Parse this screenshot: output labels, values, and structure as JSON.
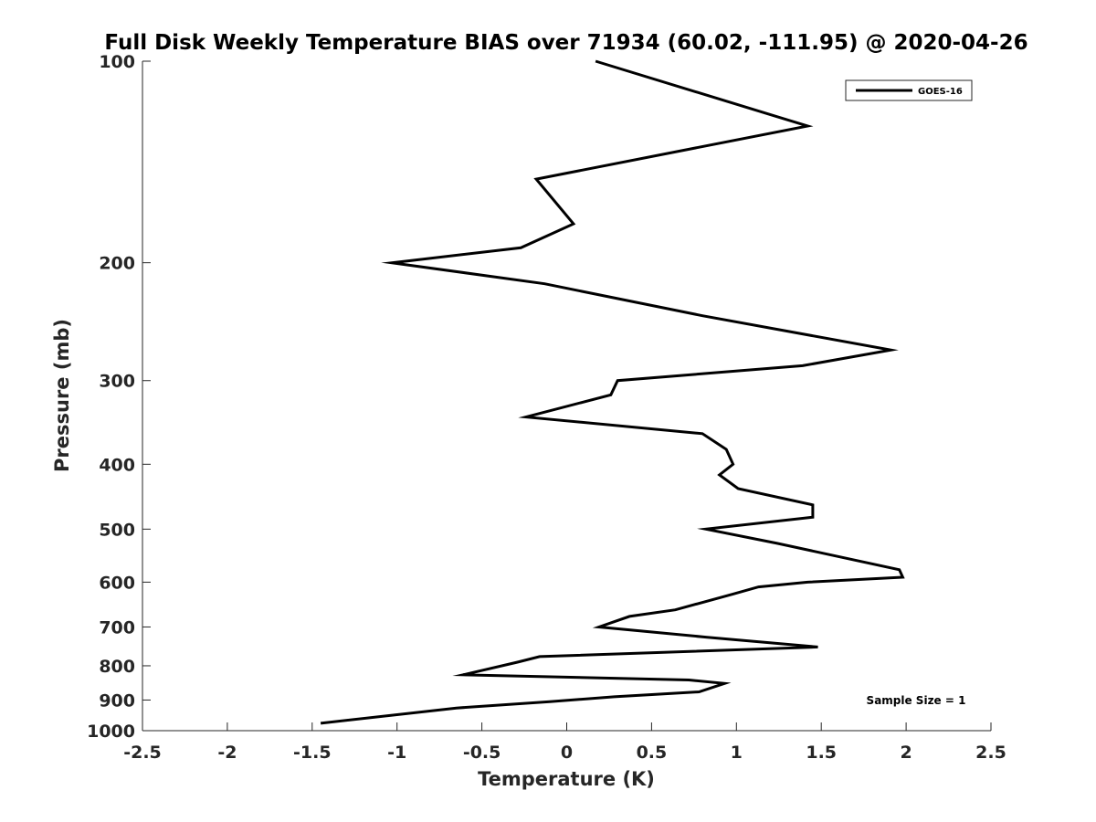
{
  "chart_data": {
    "type": "line",
    "title": "Full Disk Weekly Temperature BIAS over 71934 (60.02, -111.95) @ 2020-04-26",
    "xlabel": "Temperature (K)",
    "ylabel": "Pressure (mb)",
    "xlim": [
      -2.5,
      2.5
    ],
    "ylim": [
      100,
      1000
    ],
    "y_scale": "log",
    "y_direction": "reversed",
    "x_ticks": [
      "-2.5",
      "-2",
      "-1.5",
      "-1",
      "-0.5",
      "0",
      "0.5",
      "1",
      "1.5",
      "2",
      "2.5"
    ],
    "y_ticks": [
      "100",
      "200",
      "300",
      "400",
      "500",
      "600",
      "700",
      "800",
      "900",
      "1000"
    ],
    "grid": false,
    "legend_position": "top-right",
    "series": [
      {
        "name": "GOES-16",
        "color": "#000000",
        "points": [
          {
            "t": 0.17,
            "p": 100
          },
          {
            "t": 1.42,
            "p": 125
          },
          {
            "t": -0.18,
            "p": 150
          },
          {
            "t": 0.04,
            "p": 175
          },
          {
            "t": -0.27,
            "p": 190
          },
          {
            "t": -1.03,
            "p": 200
          },
          {
            "t": -0.13,
            "p": 215
          },
          {
            "t": 0.8,
            "p": 240
          },
          {
            "t": 1.91,
            "p": 270
          },
          {
            "t": 1.39,
            "p": 285
          },
          {
            "t": 0.3,
            "p": 300
          },
          {
            "t": 0.26,
            "p": 315
          },
          {
            "t": -0.24,
            "p": 340
          },
          {
            "t": 0.8,
            "p": 360
          },
          {
            "t": 0.94,
            "p": 380
          },
          {
            "t": 0.98,
            "p": 400
          },
          {
            "t": 0.9,
            "p": 415
          },
          {
            "t": 1.01,
            "p": 435
          },
          {
            "t": 1.45,
            "p": 460
          },
          {
            "t": 1.45,
            "p": 480
          },
          {
            "t": 0.82,
            "p": 500
          },
          {
            "t": 1.24,
            "p": 525
          },
          {
            "t": 1.96,
            "p": 575
          },
          {
            "t": 1.98,
            "p": 590
          },
          {
            "t": 1.42,
            "p": 600
          },
          {
            "t": 1.13,
            "p": 610
          },
          {
            "t": 0.98,
            "p": 625
          },
          {
            "t": 0.64,
            "p": 660
          },
          {
            "t": 0.37,
            "p": 675
          },
          {
            "t": 0.19,
            "p": 700
          },
          {
            "t": 0.82,
            "p": 725
          },
          {
            "t": 1.48,
            "p": 750
          },
          {
            "t": -0.16,
            "p": 775
          },
          {
            "t": -0.29,
            "p": 790
          },
          {
            "t": -0.61,
            "p": 825
          },
          {
            "t": 0.72,
            "p": 840
          },
          {
            "t": 0.93,
            "p": 850
          },
          {
            "t": 0.78,
            "p": 875
          },
          {
            "t": 0.28,
            "p": 890
          },
          {
            "t": -0.1,
            "p": 905
          },
          {
            "t": -0.65,
            "p": 925
          },
          {
            "t": -1.45,
            "p": 975
          }
        ]
      }
    ],
    "annotations": [
      {
        "text": "Sample Size = 1",
        "position": "bottom-right"
      }
    ]
  }
}
